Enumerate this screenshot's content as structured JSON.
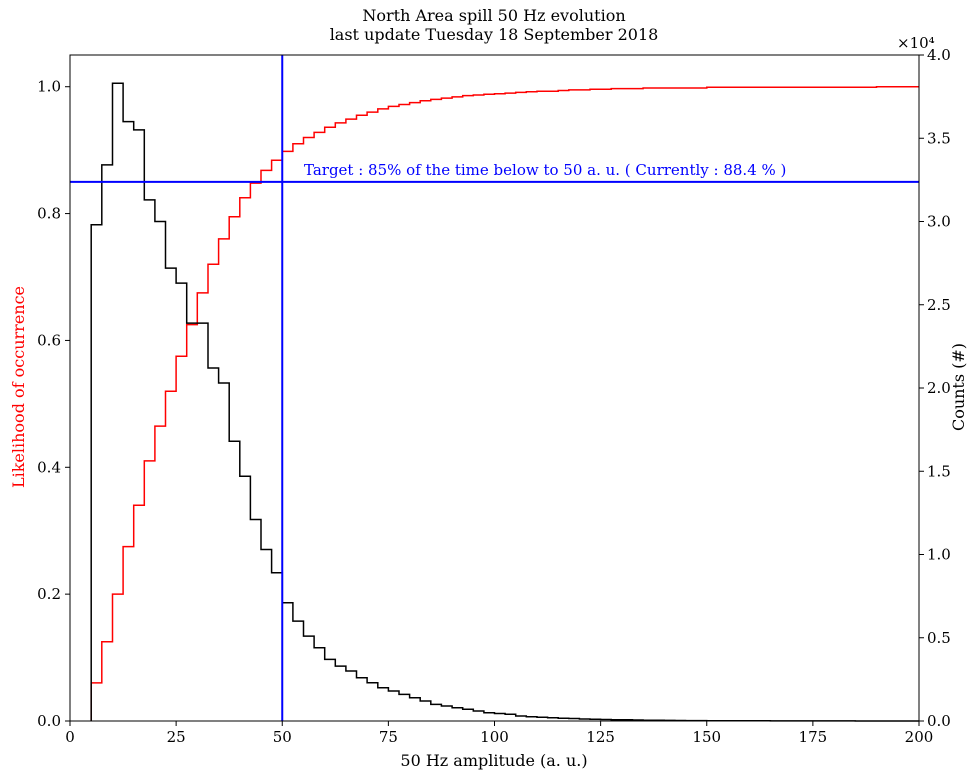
{
  "chart_data": {
    "type": "line",
    "title": "North Area spill 50 Hz evolution",
    "subtitle": "last update Tuesday 18 September 2018",
    "xlabel": "50 Hz amplitude (a. u.)",
    "ylabel_left": "Likelihood of occurrence",
    "ylabel_right": "Counts (#)",
    "right_axis_multiplier": "×10⁴",
    "xlim": [
      0,
      200
    ],
    "ylim_left": [
      0,
      1.05
    ],
    "ylim_right": [
      0,
      40000
    ],
    "x_ticks": [
      "0",
      "25",
      "50",
      "75",
      "100",
      "125",
      "150",
      "175",
      "200"
    ],
    "y_ticks_left": [
      "0.0",
      "0.2",
      "0.4",
      "0.6",
      "0.8",
      "1.0"
    ],
    "y_ticks_right": [
      "0.0",
      "0.5",
      "1.0",
      "1.5",
      "2.0",
      "2.5",
      "3.0",
      "3.5",
      "4.0"
    ],
    "grid": false,
    "annotation": "Target : 85% of the time below to 50 a. u. ( Currently : 88.4 % )",
    "reference_lines": {
      "horizontal_left_y": 0.85,
      "vertical_x": 50,
      "color": "#0000ff"
    },
    "bin_edges": [
      5,
      7.5,
      10,
      12.5,
      15,
      17.5,
      20,
      22.5,
      25,
      27.5,
      30,
      32.5,
      35,
      37.5,
      40,
      42.5,
      45,
      47.5,
      50,
      52.5,
      55,
      57.5,
      60,
      62.5,
      65,
      67.5,
      70,
      72.5,
      75,
      77.5,
      80,
      82.5,
      85,
      87.5,
      90,
      92.5,
      95,
      97.5,
      100,
      102.5,
      105,
      107.5,
      110,
      112.5,
      115,
      117.5,
      120,
      122.5,
      125,
      127.5,
      130,
      132.5,
      135,
      137.5,
      140,
      142.5,
      145,
      150,
      155,
      160,
      165,
      170,
      175,
      180,
      185,
      190,
      195,
      200
    ],
    "series": [
      {
        "name": "",
        "axis": "left",
        "color": "#ff0000",
        "values": [
          0.06,
          0.125,
          0.2,
          0.275,
          0.34,
          0.41,
          0.465,
          0.52,
          0.575,
          0.625,
          0.675,
          0.72,
          0.76,
          0.795,
          0.825,
          0.848,
          0.868,
          0.884,
          0.898,
          0.91,
          0.92,
          0.928,
          0.936,
          0.943,
          0.949,
          0.955,
          0.96,
          0.965,
          0.969,
          0.972,
          0.975,
          0.978,
          0.98,
          0.982,
          0.984,
          0.986,
          0.987,
          0.988,
          0.989,
          0.99,
          0.991,
          0.992,
          0.993,
          0.993,
          0.994,
          0.995,
          0.995,
          0.996,
          0.996,
          0.997,
          0.997,
          0.997,
          0.998,
          0.998,
          0.998,
          0.998,
          0.998,
          0.999,
          0.999,
          0.999,
          0.999,
          0.999,
          0.999,
          0.999,
          0.999,
          1.0,
          1.0
        ]
      },
      {
        "name": "",
        "axis": "right",
        "color": "#000000",
        "values": [
          29800,
          33400,
          38300,
          36000,
          35500,
          31300,
          30000,
          27200,
          26300,
          23900,
          23900,
          21200,
          20300,
          16800,
          14700,
          12100,
          10300,
          8900,
          7100,
          6000,
          5100,
          4400,
          3700,
          3300,
          3000,
          2600,
          2300,
          2000,
          1800,
          1600,
          1400,
          1200,
          1000,
          900,
          800,
          700,
          600,
          500,
          450,
          400,
          300,
          260,
          220,
          190,
          170,
          150,
          120,
          110,
          90,
          80,
          70,
          60,
          50,
          40,
          35,
          30,
          25,
          20,
          15,
          10,
          8,
          6,
          5,
          4,
          3,
          2,
          2
        ]
      }
    ]
  }
}
